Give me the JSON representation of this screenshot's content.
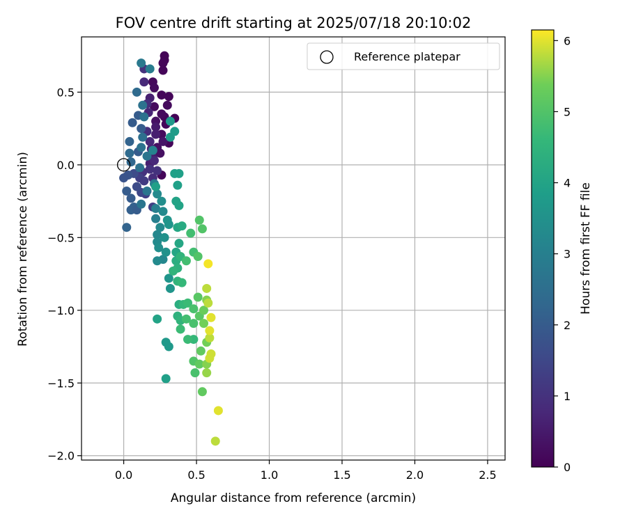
{
  "chart_data": {
    "type": "scatter",
    "title": "FOV centre drift starting at 2025/07/18 20:10:02",
    "xlabel": "Angular distance from reference (arcmin)",
    "ylabel": "Rotation from reference (arcmin)",
    "xlim": [
      -0.29,
      2.62
    ],
    "ylim": [
      -2.03,
      0.88
    ],
    "xticks": [
      0.0,
      0.5,
      1.0,
      1.5,
      2.0,
      2.5
    ],
    "xtick_labels": [
      "0.0",
      "0.5",
      "1.0",
      "1.5",
      "2.0",
      "2.5"
    ],
    "yticks": [
      0.5,
      0.0,
      -0.5,
      -1.0,
      -1.5,
      -2.0
    ],
    "ytick_labels": [
      "0.5",
      "0.0",
      "−0.5",
      "−1.0",
      "−1.5",
      "−2.0"
    ],
    "grid": true,
    "legend": {
      "position": "top-right",
      "entries": [
        "Reference platepar"
      ]
    },
    "reference_point": {
      "x": 0.0,
      "y": 0.0,
      "label": "Reference platepar"
    },
    "colorbar": {
      "label": "Hours from first FF file",
      "colormap": "viridis",
      "range": [
        0,
        6.15
      ],
      "ticks": [
        0,
        1,
        2,
        3,
        4,
        5,
        6
      ],
      "tick_labels": [
        "0",
        "1",
        "2",
        "3",
        "4",
        "5",
        "6"
      ]
    },
    "points": [
      {
        "x": 0.28,
        "y": 0.75,
        "c": 0.05
      },
      {
        "x": 0.28,
        "y": 0.72,
        "c": 0.05
      },
      {
        "x": 0.27,
        "y": 0.7,
        "c": 0.1
      },
      {
        "x": 0.27,
        "y": 0.65,
        "c": 0.1
      },
      {
        "x": 0.2,
        "y": 0.57,
        "c": 0.15
      },
      {
        "x": 0.21,
        "y": 0.53,
        "c": 0.2
      },
      {
        "x": 0.26,
        "y": 0.48,
        "c": 0.1
      },
      {
        "x": 0.31,
        "y": 0.47,
        "c": 0.1
      },
      {
        "x": 0.21,
        "y": 0.4,
        "c": 0.2
      },
      {
        "x": 0.3,
        "y": 0.41,
        "c": 0.2
      },
      {
        "x": 0.28,
        "y": 0.33,
        "c": 0.1
      },
      {
        "x": 0.26,
        "y": 0.35,
        "c": 0.2
      },
      {
        "x": 0.35,
        "y": 0.32,
        "c": 0.05
      },
      {
        "x": 0.29,
        "y": 0.28,
        "c": 0.1
      },
      {
        "x": 0.22,
        "y": 0.3,
        "c": 0.3
      },
      {
        "x": 0.26,
        "y": 0.21,
        "c": 0.2
      },
      {
        "x": 0.31,
        "y": 0.15,
        "c": 0.1
      },
      {
        "x": 0.23,
        "y": 0.12,
        "c": 0.3
      },
      {
        "x": 0.27,
        "y": 0.16,
        "c": 0.4
      },
      {
        "x": 0.25,
        "y": 0.08,
        "c": 0.3
      },
      {
        "x": 0.2,
        "y": 0.05,
        "c": 0.5
      },
      {
        "x": 0.18,
        "y": 0.01,
        "c": 0.6
      },
      {
        "x": 0.26,
        "y": -0.07,
        "c": 0.1
      },
      {
        "x": 0.22,
        "y": 0.26,
        "c": 0.5
      },
      {
        "x": 0.14,
        "y": 0.57,
        "c": 0.8
      },
      {
        "x": 0.14,
        "y": 0.66,
        "c": 1.0
      },
      {
        "x": 0.18,
        "y": 0.46,
        "c": 0.6
      },
      {
        "x": 0.17,
        "y": 0.36,
        "c": 0.7
      },
      {
        "x": 0.16,
        "y": 0.42,
        "c": 0.9
      },
      {
        "x": 0.16,
        "y": 0.23,
        "c": 0.9
      },
      {
        "x": 0.18,
        "y": 0.16,
        "c": 0.8
      },
      {
        "x": 0.19,
        "y": 0.11,
        "c": 0.7
      },
      {
        "x": 0.22,
        "y": 0.21,
        "c": 0.6
      },
      {
        "x": 0.21,
        "y": 0.03,
        "c": 0.8
      },
      {
        "x": 0.18,
        "y": -0.03,
        "c": 1.0
      },
      {
        "x": 0.13,
        "y": -0.05,
        "c": 1.0
      },
      {
        "x": 0.2,
        "y": -0.09,
        "c": 0.9
      },
      {
        "x": 0.23,
        "y": -0.04,
        "c": 1.0
      },
      {
        "x": 0.11,
        "y": -0.09,
        "c": 1.3
      },
      {
        "x": 0.14,
        "y": -0.11,
        "c": 1.2
      },
      {
        "x": 0.15,
        "y": -0.2,
        "c": 1.3
      },
      {
        "x": 0.2,
        "y": -0.29,
        "c": 1.3
      },
      {
        "x": 0.12,
        "y": -0.19,
        "c": 1.5
      },
      {
        "x": 0.09,
        "y": -0.15,
        "c": 1.6
      },
      {
        "x": 0.07,
        "y": -0.06,
        "c": 1.6
      },
      {
        "x": 0.03,
        "y": -0.07,
        "c": 1.8
      },
      {
        "x": 0.0,
        "y": -0.09,
        "c": 1.8
      },
      {
        "x": 0.05,
        "y": -0.23,
        "c": 2.0
      },
      {
        "x": 0.02,
        "y": -0.18,
        "c": 2.0
      },
      {
        "x": 0.07,
        "y": -0.29,
        "c": 2.1
      },
      {
        "x": 0.05,
        "y": -0.31,
        "c": 2.1
      },
      {
        "x": 0.09,
        "y": -0.31,
        "c": 2.0
      },
      {
        "x": 0.02,
        "y": -0.43,
        "c": 2.2
      },
      {
        "x": 0.05,
        "y": 0.02,
        "c": 2.3
      },
      {
        "x": 0.04,
        "y": 0.08,
        "c": 2.4
      },
      {
        "x": 0.04,
        "y": 0.16,
        "c": 2.2
      },
      {
        "x": 0.1,
        "y": 0.09,
        "c": 2.0
      },
      {
        "x": 0.06,
        "y": 0.29,
        "c": 2.0
      },
      {
        "x": 0.1,
        "y": 0.34,
        "c": 2.0
      },
      {
        "x": 0.12,
        "y": 0.25,
        "c": 2.0
      },
      {
        "x": 0.09,
        "y": 0.5,
        "c": 2.4
      },
      {
        "x": 0.12,
        "y": 0.7,
        "c": 2.8
      },
      {
        "x": 0.18,
        "y": 0.66,
        "c": 2.9
      },
      {
        "x": 0.13,
        "y": 0.41,
        "c": 2.6
      },
      {
        "x": 0.14,
        "y": 0.33,
        "c": 2.6
      },
      {
        "x": 0.13,
        "y": 0.19,
        "c": 2.5
      },
      {
        "x": 0.16,
        "y": 0.06,
        "c": 2.7
      },
      {
        "x": 0.12,
        "y": 0.12,
        "c": 2.6
      },
      {
        "x": 0.11,
        "y": -0.02,
        "c": 2.6
      },
      {
        "x": 0.16,
        "y": -0.18,
        "c": 2.7
      },
      {
        "x": 0.12,
        "y": -0.27,
        "c": 2.7
      },
      {
        "x": 0.21,
        "y": -0.13,
        "c": 2.9
      },
      {
        "x": 0.22,
        "y": -0.3,
        "c": 3.0
      },
      {
        "x": 0.22,
        "y": -0.37,
        "c": 3.0
      },
      {
        "x": 0.2,
        "y": 0.1,
        "c": 3.1
      },
      {
        "x": 0.23,
        "y": -0.2,
        "c": 3.3
      },
      {
        "x": 0.26,
        "y": -0.25,
        "c": 3.4
      },
      {
        "x": 0.27,
        "y": -0.32,
        "c": 3.3
      },
      {
        "x": 0.25,
        "y": -0.43,
        "c": 3.3
      },
      {
        "x": 0.23,
        "y": -0.48,
        "c": 3.2
      },
      {
        "x": 0.23,
        "y": -0.53,
        "c": 3.3
      },
      {
        "x": 0.24,
        "y": -0.57,
        "c": 3.4
      },
      {
        "x": 0.27,
        "y": -0.65,
        "c": 3.2
      },
      {
        "x": 0.23,
        "y": -0.66,
        "c": 3.3
      },
      {
        "x": 0.28,
        "y": -0.5,
        "c": 3.5
      },
      {
        "x": 0.29,
        "y": -0.6,
        "c": 3.5
      },
      {
        "x": 0.3,
        "y": -0.38,
        "c": 3.6
      },
      {
        "x": 0.31,
        "y": -0.41,
        "c": 3.6
      },
      {
        "x": 0.32,
        "y": 0.3,
        "c": 3.7
      },
      {
        "x": 0.32,
        "y": 0.19,
        "c": 3.8
      },
      {
        "x": 0.35,
        "y": 0.23,
        "c": 3.8
      },
      {
        "x": 0.35,
        "y": -0.06,
        "c": 3.9
      },
      {
        "x": 0.38,
        "y": -0.06,
        "c": 3.9
      },
      {
        "x": 0.37,
        "y": -0.14,
        "c": 3.9
      },
      {
        "x": 0.22,
        "y": -0.15,
        "c": 3.9
      },
      {
        "x": 0.38,
        "y": -0.28,
        "c": 4.0
      },
      {
        "x": 0.36,
        "y": -0.25,
        "c": 4.0
      },
      {
        "x": 0.31,
        "y": -0.78,
        "c": 3.6
      },
      {
        "x": 0.32,
        "y": -0.85,
        "c": 3.6
      },
      {
        "x": 0.29,
        "y": -1.22,
        "c": 3.7
      },
      {
        "x": 0.31,
        "y": -1.25,
        "c": 3.7
      },
      {
        "x": 0.29,
        "y": -1.47,
        "c": 3.9
      },
      {
        "x": 0.23,
        "y": -1.06,
        "c": 4.0
      },
      {
        "x": 0.36,
        "y": -0.6,
        "c": 4.1
      },
      {
        "x": 0.37,
        "y": -0.43,
        "c": 4.1
      },
      {
        "x": 0.38,
        "y": -0.54,
        "c": 4.1
      },
      {
        "x": 0.4,
        "y": -0.42,
        "c": 4.2
      },
      {
        "x": 0.36,
        "y": -0.66,
        "c": 4.3
      },
      {
        "x": 0.37,
        "y": -0.71,
        "c": 4.4
      },
      {
        "x": 0.39,
        "y": -0.63,
        "c": 4.5
      },
      {
        "x": 0.34,
        "y": -0.73,
        "c": 4.5
      },
      {
        "x": 0.37,
        "y": -0.8,
        "c": 4.5
      },
      {
        "x": 0.4,
        "y": -0.81,
        "c": 4.6
      },
      {
        "x": 0.38,
        "y": -0.96,
        "c": 4.3
      },
      {
        "x": 0.37,
        "y": -1.04,
        "c": 4.4
      },
      {
        "x": 0.39,
        "y": -1.07,
        "c": 4.5
      },
      {
        "x": 0.39,
        "y": -1.13,
        "c": 4.7
      },
      {
        "x": 0.41,
        "y": -0.96,
        "c": 4.6
      },
      {
        "x": 0.44,
        "y": -0.95,
        "c": 4.7
      },
      {
        "x": 0.43,
        "y": -1.06,
        "c": 4.8
      },
      {
        "x": 0.48,
        "y": -1.2,
        "c": 4.6
      },
      {
        "x": 0.44,
        "y": -1.2,
        "c": 4.7
      },
      {
        "x": 0.43,
        "y": -0.66,
        "c": 4.8
      },
      {
        "x": 0.46,
        "y": -0.47,
        "c": 4.8
      },
      {
        "x": 0.48,
        "y": -0.6,
        "c": 4.8
      },
      {
        "x": 0.48,
        "y": -0.99,
        "c": 4.9
      },
      {
        "x": 0.48,
        "y": -1.09,
        "c": 4.9
      },
      {
        "x": 0.49,
        "y": -1.43,
        "c": 4.9
      },
      {
        "x": 0.48,
        "y": -1.35,
        "c": 5.0
      },
      {
        "x": 0.51,
        "y": -0.63,
        "c": 5.0
      },
      {
        "x": 0.52,
        "y": -0.38,
        "c": 5.0
      },
      {
        "x": 0.54,
        "y": -0.44,
        "c": 5.0
      },
      {
        "x": 0.51,
        "y": -0.91,
        "c": 5.1
      },
      {
        "x": 0.52,
        "y": -1.04,
        "c": 5.1
      },
      {
        "x": 0.53,
        "y": -1.28,
        "c": 5.2
      },
      {
        "x": 0.52,
        "y": -1.37,
        "c": 5.2
      },
      {
        "x": 0.54,
        "y": -1.56,
        "c": 5.2
      },
      {
        "x": 0.55,
        "y": -1.0,
        "c": 5.3
      },
      {
        "x": 0.55,
        "y": -1.09,
        "c": 5.4
      },
      {
        "x": 0.57,
        "y": -1.22,
        "c": 5.4
      },
      {
        "x": 0.57,
        "y": -0.93,
        "c": 5.5
      },
      {
        "x": 0.57,
        "y": -1.37,
        "c": 5.5
      },
      {
        "x": 0.57,
        "y": -1.43,
        "c": 5.6
      },
      {
        "x": 0.57,
        "y": -0.85,
        "c": 5.8
      },
      {
        "x": 0.58,
        "y": -0.95,
        "c": 5.8
      },
      {
        "x": 0.59,
        "y": -1.19,
        "c": 5.8
      },
      {
        "x": 0.6,
        "y": -1.3,
        "c": 5.9
      },
      {
        "x": 0.59,
        "y": -1.33,
        "c": 5.9
      },
      {
        "x": 0.6,
        "y": -1.05,
        "c": 6.0
      },
      {
        "x": 0.59,
        "y": -1.14,
        "c": 6.0
      },
      {
        "x": 0.58,
        "y": -0.68,
        "c": 6.1
      },
      {
        "x": 0.65,
        "y": -1.69,
        "c": 6.0
      },
      {
        "x": 0.63,
        "y": -1.9,
        "c": 5.8
      }
    ]
  }
}
